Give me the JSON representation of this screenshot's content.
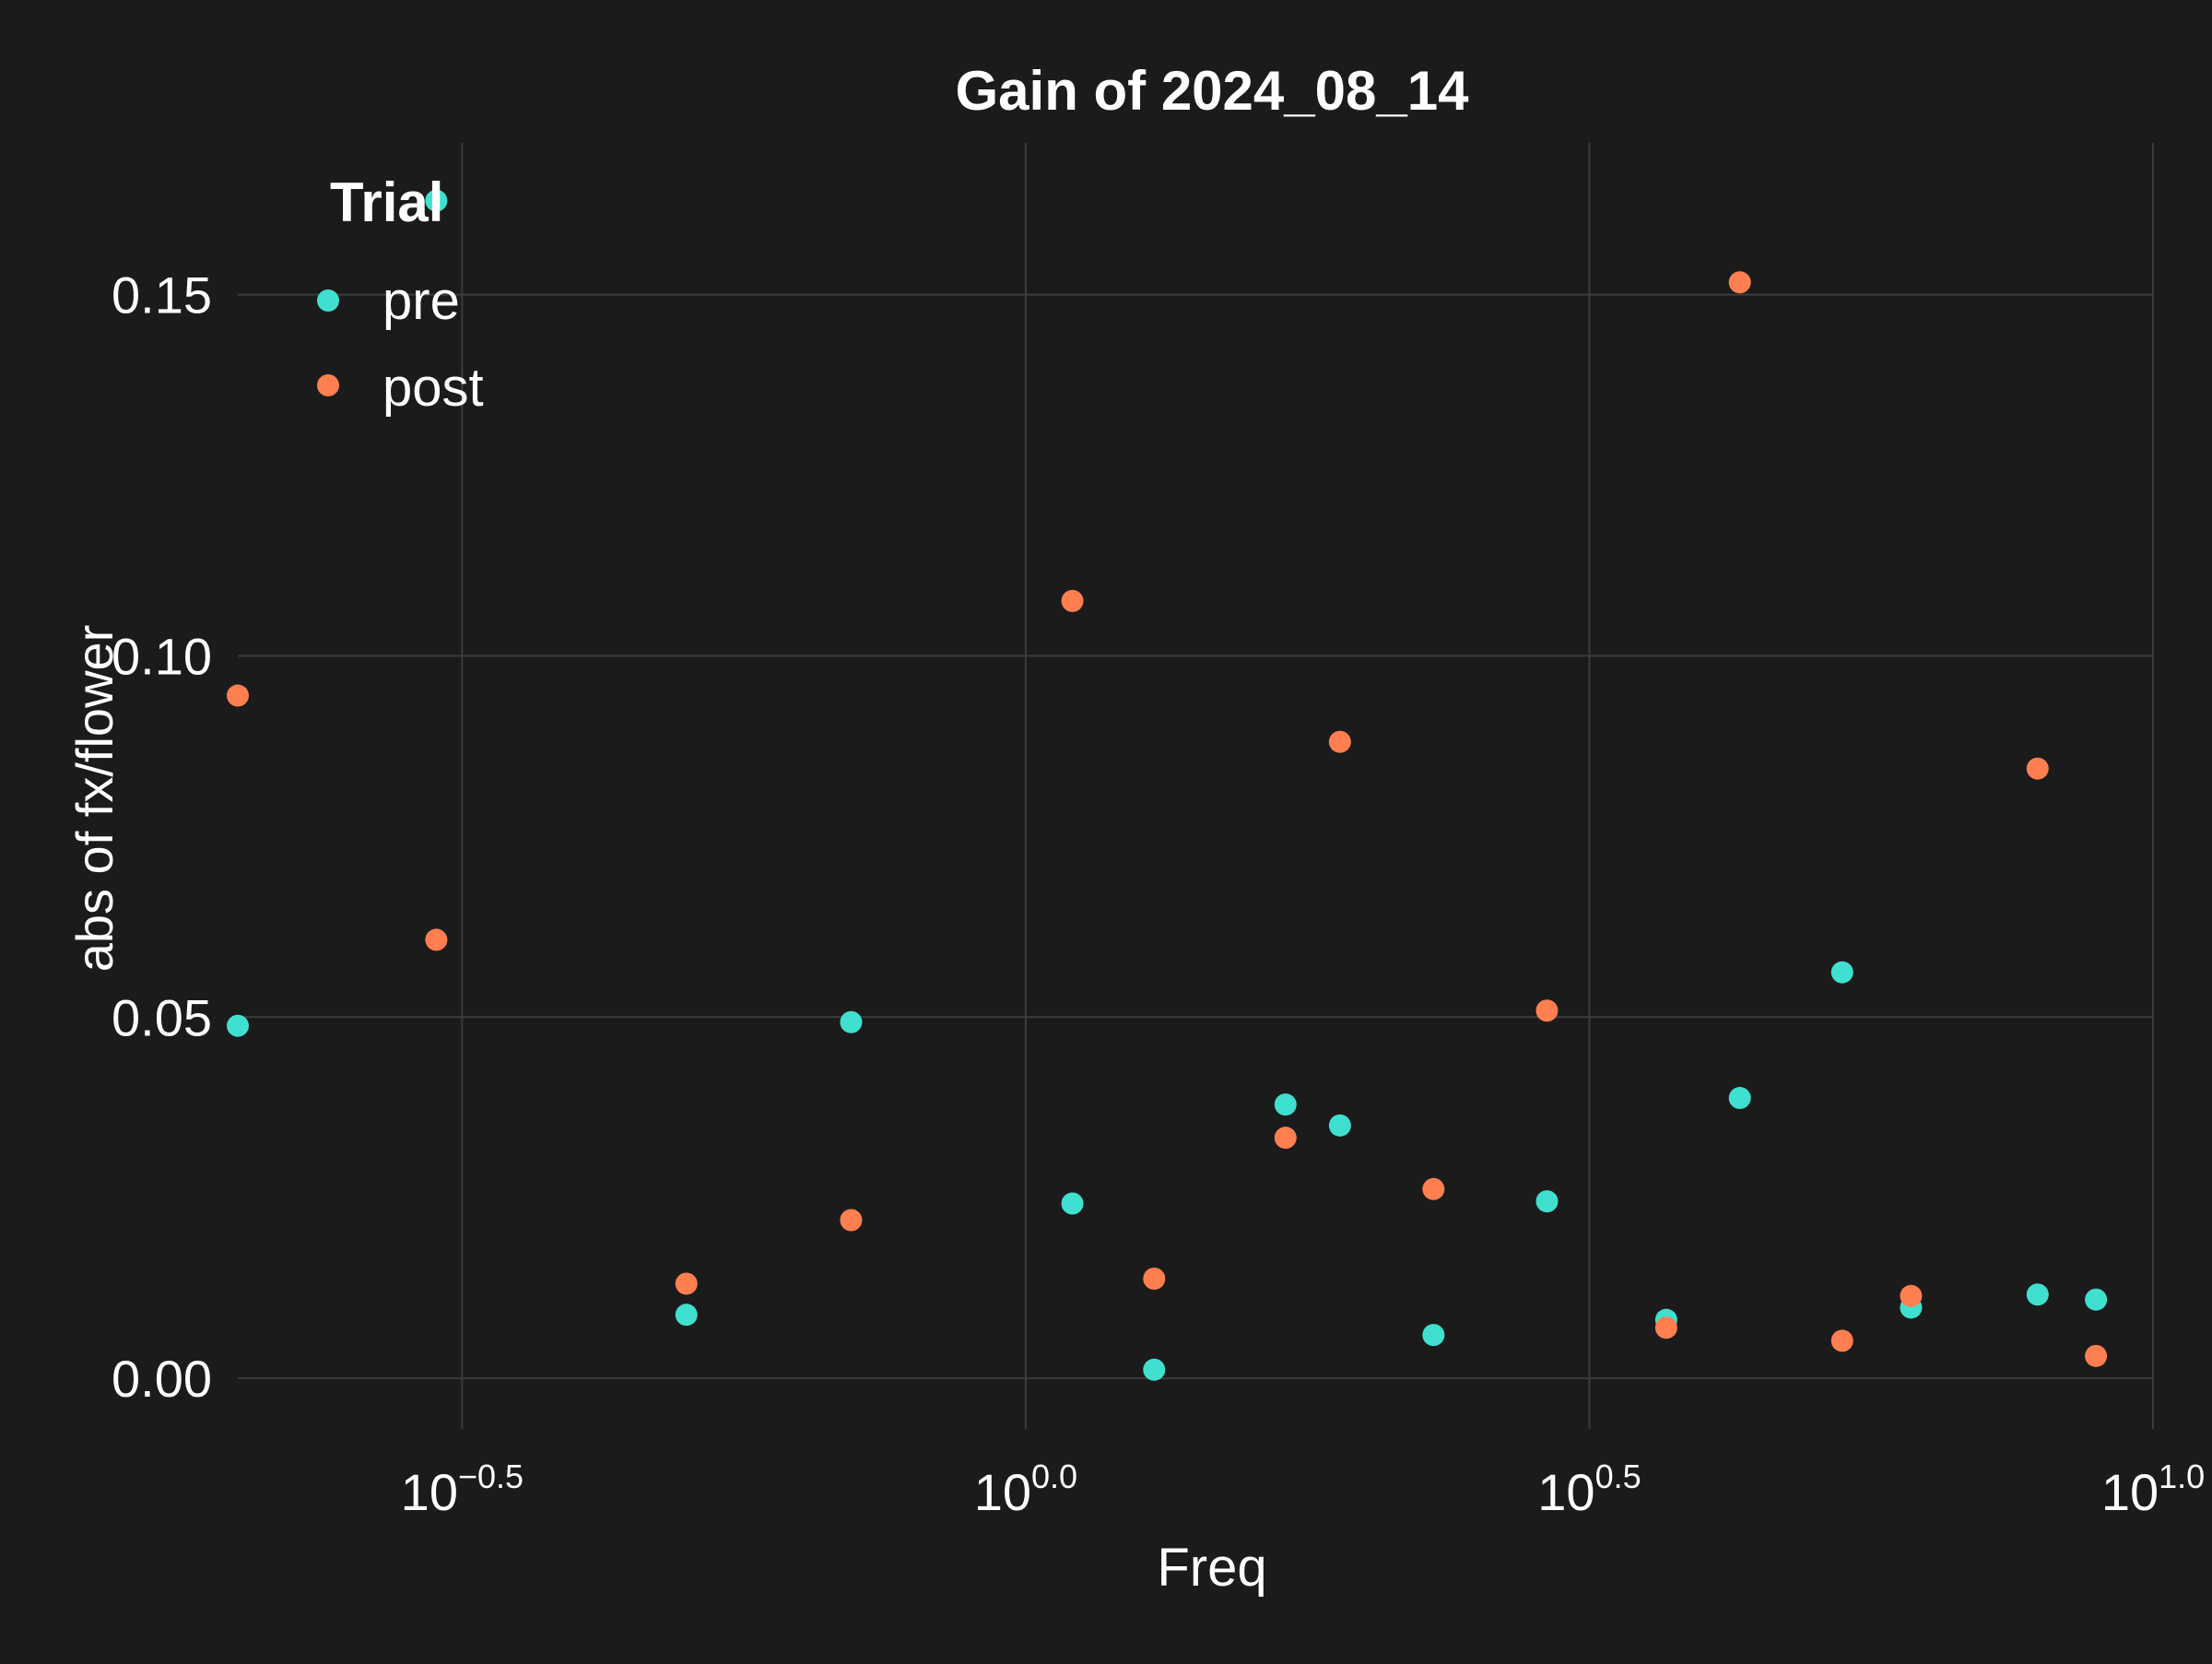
{
  "chart_data": {
    "type": "scatter",
    "title": "Gain of 2024_08_14",
    "xlabel": "Freq",
    "ylabel": "abs of fx/flower",
    "x_scale": "log10",
    "xlim": [
      0.2,
      10.0
    ],
    "ylim": [
      -0.007,
      0.171
    ],
    "x_ticks": [
      {
        "value": 0.316228,
        "base": "10",
        "exp": "−0.5"
      },
      {
        "value": 1.0,
        "base": "10",
        "exp": "0.0"
      },
      {
        "value": 3.162278,
        "base": "10",
        "exp": "0.5"
      },
      {
        "value": 10.0,
        "base": "10",
        "exp": "1.0"
      }
    ],
    "y_ticks": [
      {
        "value": 0.0,
        "label": "0.00"
      },
      {
        "value": 0.05,
        "label": "0.05"
      },
      {
        "value": 0.1,
        "label": "0.10"
      },
      {
        "value": 0.15,
        "label": "0.15"
      }
    ],
    "grid": true,
    "legend_title": "Trial",
    "legend_position": "top-left",
    "series": [
      {
        "name": "pre",
        "color": "#40e0d0",
        "points": [
          {
            "x": 0.2,
            "y": 0.0488
          },
          {
            "x": 0.3,
            "y": 0.163
          },
          {
            "x": 0.5,
            "y": 0.0088
          },
          {
            "x": 0.7,
            "y": 0.0493
          },
          {
            "x": 1.1,
            "y": 0.0242
          },
          {
            "x": 1.3,
            "y": 0.0012
          },
          {
            "x": 1.7,
            "y": 0.0379
          },
          {
            "x": 1.9,
            "y": 0.035
          },
          {
            "x": 2.3,
            "y": 0.006
          },
          {
            "x": 2.9,
            "y": 0.0245
          },
          {
            "x": 3.7,
            "y": 0.0081
          },
          {
            "x": 4.3,
            "y": 0.0388
          },
          {
            "x": 5.3,
            "y": 0.0562
          },
          {
            "x": 6.1,
            "y": 0.0098
          },
          {
            "x": 7.9,
            "y": 0.0116
          },
          {
            "x": 8.9,
            "y": 0.0109
          }
        ]
      },
      {
        "name": "post",
        "color": "#ff7f50",
        "points": [
          {
            "x": 0.2,
            "y": 0.0945
          },
          {
            "x": 0.3,
            "y": 0.0607
          },
          {
            "x": 0.5,
            "y": 0.0131
          },
          {
            "x": 0.7,
            "y": 0.0219
          },
          {
            "x": 1.1,
            "y": 0.1076
          },
          {
            "x": 1.3,
            "y": 0.0138
          },
          {
            "x": 1.7,
            "y": 0.0333
          },
          {
            "x": 1.9,
            "y": 0.0881
          },
          {
            "x": 2.3,
            "y": 0.0262
          },
          {
            "x": 2.9,
            "y": 0.0509
          },
          {
            "x": 3.7,
            "y": 0.007
          },
          {
            "x": 4.3,
            "y": 0.1517
          },
          {
            "x": 5.3,
            "y": 0.0052
          },
          {
            "x": 6.1,
            "y": 0.0114
          },
          {
            "x": 7.9,
            "y": 0.0844
          },
          {
            "x": 8.9,
            "y": 0.0031
          }
        ]
      }
    ]
  },
  "colors": {
    "background": "#1b1b1b",
    "text": "#ffffff",
    "grid": "#3c3c3c"
  }
}
